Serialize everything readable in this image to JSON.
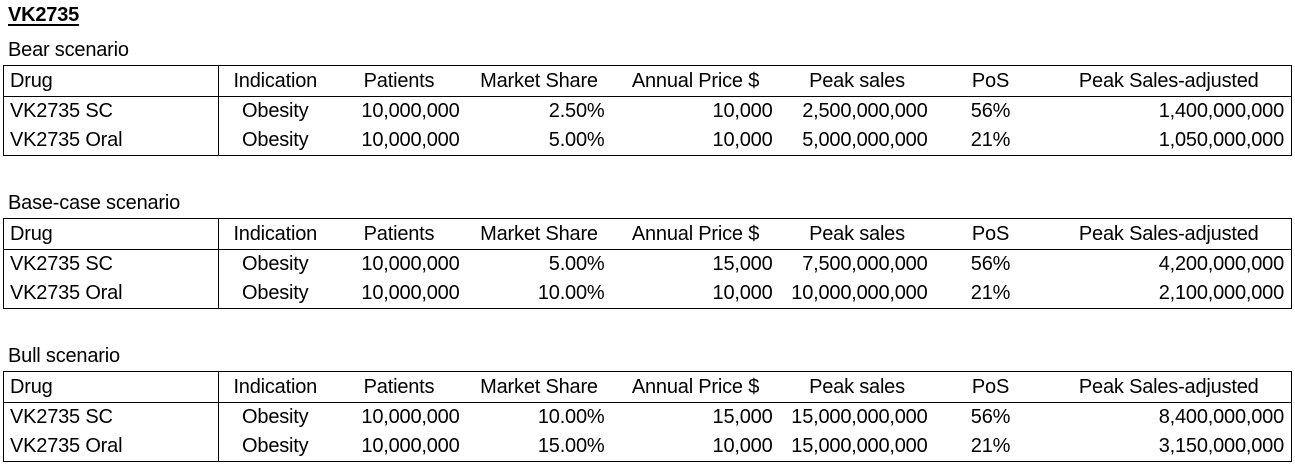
{
  "page": {
    "title": "VK2735"
  },
  "colors": {
    "text": "#000000",
    "background": "#ffffff",
    "table_border": "#000000"
  },
  "columns": [
    "Drug",
    "Indication",
    "Patients",
    "Market Share",
    "Annual Price $",
    "Peak sales",
    "PoS",
    "Peak Sales-adjusted"
  ],
  "sections": [
    {
      "label": "Bear scenario",
      "rows": [
        {
          "drug": "VK2735 SC",
          "indication": "Obesity",
          "patients": "10,000,000",
          "market_share": "2.50%",
          "annual_price": "10,000",
          "peak_sales": "2,500,000,000",
          "pos": "56%",
          "peak_sales_adjusted": "1,400,000,000"
        },
        {
          "drug": "VK2735 Oral",
          "indication": "Obesity",
          "patients": "10,000,000",
          "market_share": "5.00%",
          "annual_price": "10,000",
          "peak_sales": "5,000,000,000",
          "pos": "21%",
          "peak_sales_adjusted": "1,050,000,000"
        }
      ]
    },
    {
      "label": "Base-case scenario",
      "rows": [
        {
          "drug": "VK2735 SC",
          "indication": "Obesity",
          "patients": "10,000,000",
          "market_share": "5.00%",
          "annual_price": "15,000",
          "peak_sales": "7,500,000,000",
          "pos": "56%",
          "peak_sales_adjusted": "4,200,000,000"
        },
        {
          "drug": "VK2735 Oral",
          "indication": "Obesity",
          "patients": "10,000,000",
          "market_share": "10.00%",
          "annual_price": "10,000",
          "peak_sales": "10,000,000,000",
          "pos": "21%",
          "peak_sales_adjusted": "2,100,000,000"
        }
      ]
    },
    {
      "label": "Bull scenario",
      "rows": [
        {
          "drug": "VK2735 SC",
          "indication": "Obesity",
          "patients": "10,000,000",
          "market_share": "10.00%",
          "annual_price": "15,000",
          "peak_sales": "15,000,000,000",
          "pos": "56%",
          "peak_sales_adjusted": "8,400,000,000"
        },
        {
          "drug": "VK2735 Oral",
          "indication": "Obesity",
          "patients": "10,000,000",
          "market_share": "15.00%",
          "annual_price": "10,000",
          "peak_sales": "15,000,000,000",
          "pos": "21%",
          "peak_sales_adjusted": "3,150,000,000"
        }
      ]
    }
  ]
}
